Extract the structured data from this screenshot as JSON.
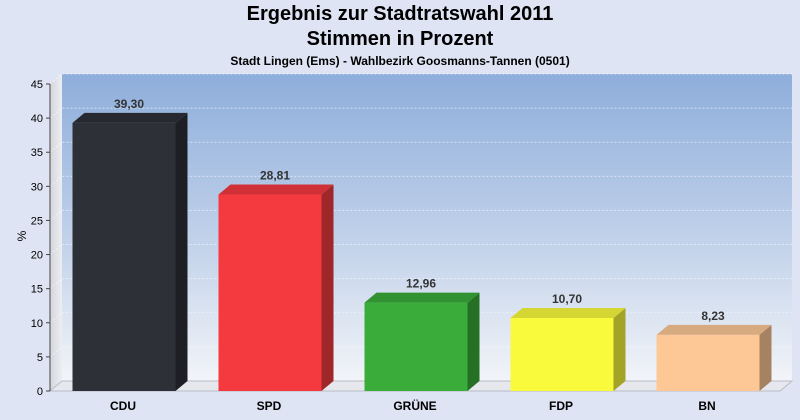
{
  "header": {
    "title_line1": "Ergebnis zur Stadtratswahl 2011",
    "title_line2": "Stimmen in Prozent",
    "subtitle": "Stadt Lingen (Ems) - Wahlbezirk Goosmanns-Tannen (0501)"
  },
  "chart_data": {
    "type": "bar",
    "title": "Ergebnis zur Stadtratswahl 2011 Stimmen in Prozent",
    "subtitle": "Stadt Lingen (Ems) - Wahlbezirk Goosmanns-Tannen (0501)",
    "xlabel": "",
    "ylabel": "%",
    "ylim": [
      0,
      45
    ],
    "yticks": [
      0,
      5,
      10,
      15,
      20,
      25,
      30,
      35,
      40,
      45
    ],
    "grid": true,
    "categories": [
      "CDU",
      "SPD",
      "GRÜNE",
      "FDP",
      "BN"
    ],
    "values": [
      39.3,
      28.81,
      12.96,
      10.7,
      8.23
    ],
    "value_labels": [
      "39,30",
      "28,81",
      "12,96",
      "10,70",
      "8,23"
    ],
    "colors": [
      "#2e3038",
      "#f43a3f",
      "#3aac3a",
      "#fafa3c",
      "#fdc896"
    ]
  }
}
